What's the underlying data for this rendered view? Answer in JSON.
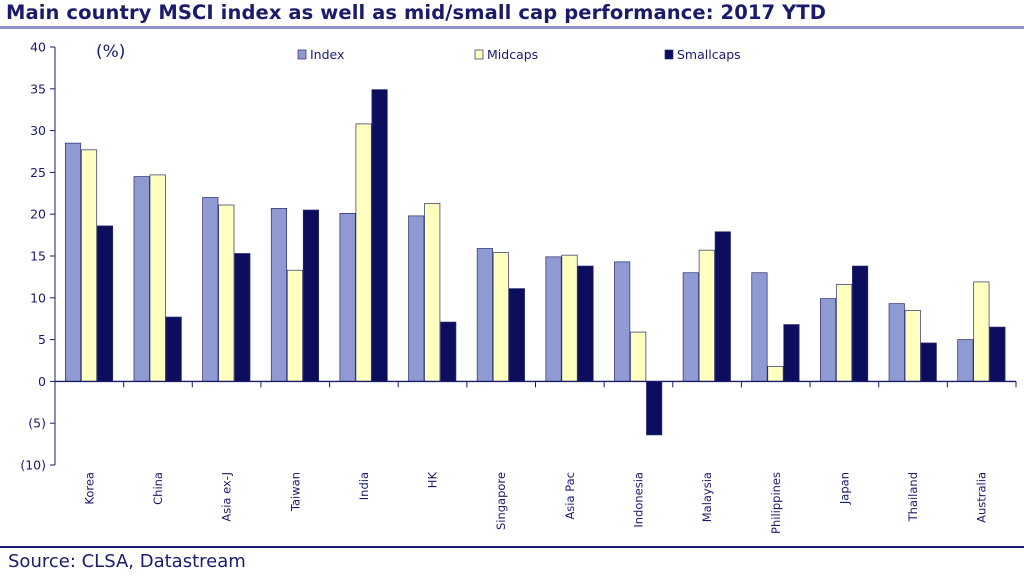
{
  "header": {
    "title": "Main country MSCI index as well as mid/small cap performance: 2017 YTD"
  },
  "footer": {
    "source": "Source: CLSA, Datastream"
  },
  "colors": {
    "index": "#8f9ad2",
    "midcaps": "#ffffc0",
    "smallcaps": "#0d0d5e",
    "axis": "#1b1b6b",
    "text": "#1b1b6b"
  },
  "chart_data": {
    "type": "bar",
    "title": "Main country MSCI index as well as mid/small cap performance: 2017 YTD",
    "unit_label": "(%)",
    "xlabel": "",
    "ylabel": "(%)",
    "ylim": [
      -10,
      40
    ],
    "yticks": [
      -10,
      -5,
      0,
      5,
      10,
      15,
      20,
      25,
      30,
      35,
      40
    ],
    "ytick_labels": [
      "(10)",
      "(5)",
      "0",
      "5",
      "10",
      "15",
      "20",
      "25",
      "30",
      "35",
      "40"
    ],
    "grid": false,
    "legend_position": "top",
    "categories": [
      "Korea",
      "China",
      "Asia ex-J",
      "Taiwan",
      "India",
      "HK",
      "Singapore",
      "Asia Pac",
      "Indonesia",
      "Malaysia",
      "Philippines",
      "Japan",
      "Thailand",
      "Australia"
    ],
    "series": [
      {
        "name": "Index",
        "color_key": "index",
        "values": [
          28.5,
          24.5,
          22.0,
          20.7,
          20.1,
          19.8,
          15.9,
          14.9,
          14.3,
          13.0,
          13.0,
          9.9,
          9.3,
          5.0
        ]
      },
      {
        "name": "Midcaps",
        "color_key": "midcaps",
        "values": [
          27.7,
          24.7,
          21.1,
          13.3,
          30.8,
          21.3,
          15.4,
          15.1,
          5.9,
          15.7,
          1.8,
          11.6,
          8.5,
          11.9
        ]
      },
      {
        "name": "Smallcaps",
        "color_key": "smallcaps",
        "values": [
          18.6,
          7.7,
          15.3,
          20.5,
          34.9,
          7.1,
          11.1,
          13.8,
          -6.4,
          17.9,
          6.8,
          13.8,
          4.6,
          6.5
        ]
      }
    ]
  }
}
